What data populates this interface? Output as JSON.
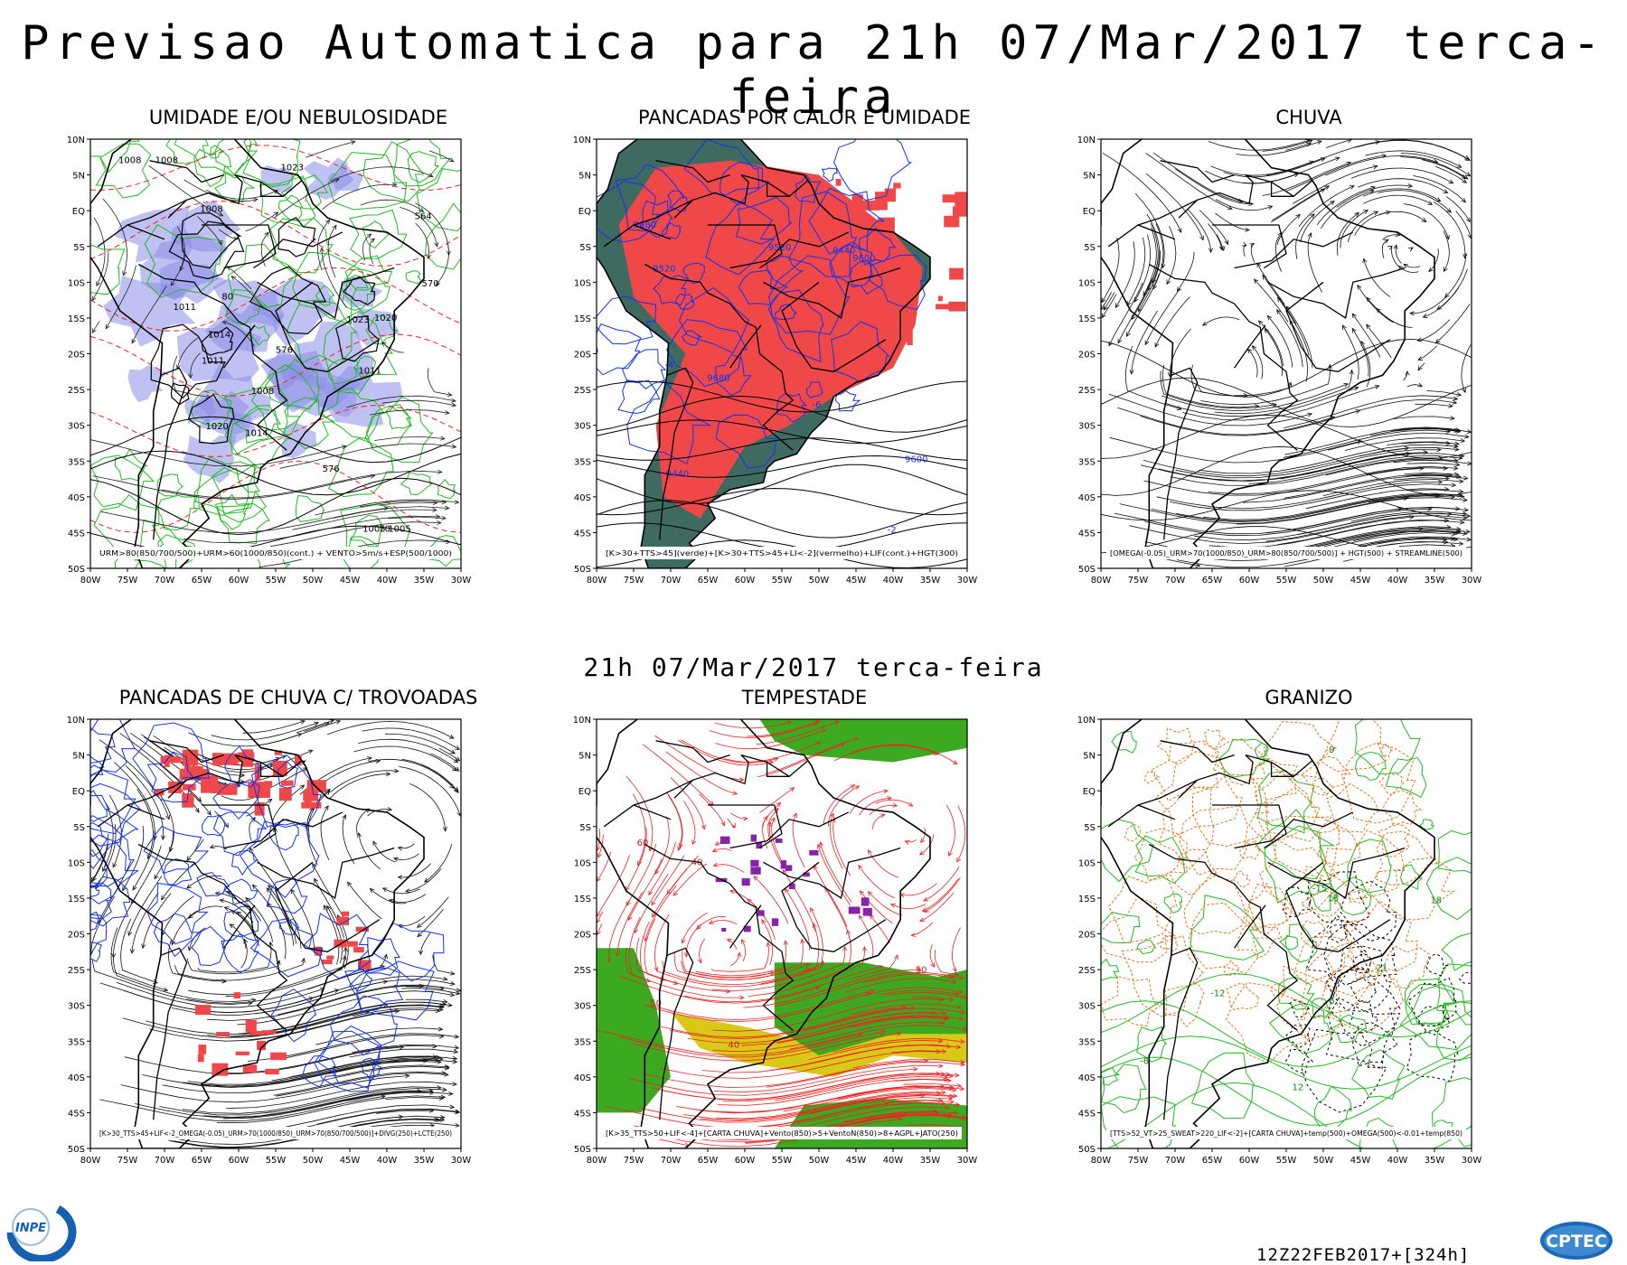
{
  "header": {
    "title": "Previsao Automatica  para 21h 07/Mar/2017 terca-feira",
    "subtitle": "21h 07/Mar/2017 terca-feira"
  },
  "axes": {
    "lat_labels": [
      "10N",
      "5N",
      "EQ",
      "5S",
      "10S",
      "15S",
      "20S",
      "25S",
      "30S",
      "35S",
      "40S",
      "45S",
      "50S"
    ],
    "lon_labels": [
      "80W",
      "75W",
      "70W",
      "65W",
      "60W",
      "55W",
      "50W",
      "45W",
      "40W",
      "35W",
      "30W"
    ]
  },
  "panels": [
    {
      "id": "umidade",
      "title": "UMIDADE E/OU NEBULOSIDADE",
      "caption": "URM>80(850/700/500)+URM>60(1000/850)(cont.) + VENTO>5m/s+ESP(500/1000)",
      "labels": [
        "1008",
        "1011",
        "1008",
        "1011",
        "1005",
        "1008",
        "1014",
        "1011",
        "1020",
        "1023",
        "1020",
        "1023",
        "1008",
        "1005",
        "1014",
        "576",
        "576",
        "570",
        "564",
        "80",
        "70"
      ]
    },
    {
      "id": "pancadas-calor",
      "title": "PANCADAS POR CALOR E UMIDADE",
      "caption": "[K>30+TTS>45](verde)+[K>30+TTS>45+LI<-2](vermelho)+LIF(cont.)+HGT(300)",
      "labels": [
        "-2",
        "-4",
        "-6",
        "9680",
        "9600",
        "9520",
        "9440",
        "9680",
        "9600",
        "9520",
        "9440"
      ]
    },
    {
      "id": "chuva",
      "title": "CHUVA",
      "caption": "[OMEGA(-0.05)_URM>70(1000/850)_URM>80(850/700/500)] + HGT(500) + STREAMLINE(500)",
      "labels": []
    },
    {
      "id": "pancadas-trovoadas",
      "title": "PANCADAS DE CHUVA C/ TROVOADAS",
      "caption": "[K>30_TTS>45+LIF<-2_OMEGA(-0.05)_URM>70(1000/850)_URM>70(850/700/500)]+DIVG(250)+LCTE(250)",
      "labels": []
    },
    {
      "id": "tempestade",
      "title": "TEMPESTADE",
      "caption": "[K>35_TTS>50+LIF<-4]+[CARTA CHUVA]+Vento(850)>5+VentoN(850)>8+AGPL+JATO(250)",
      "labels": [
        "40",
        "50",
        "60",
        "40",
        "50"
      ]
    },
    {
      "id": "granizo",
      "title": "GRANIZO",
      "caption": "[TTS>52_VT>25_SWEAT>220_LIF<-2]+[CARTA CHUVA]+temp(500)+OMEGA(500)<-0.01+temp(850)",
      "labels": [
        "-6",
        "-6",
        "12",
        "15",
        "18",
        "21",
        "-9",
        "-12",
        "-15"
      ]
    }
  ],
  "footer": {
    "run_info": "12Z22FEB2017+[324h]",
    "inpe_logo": "INPE",
    "cptec_logo": "CPTEC"
  },
  "colors": {
    "humidity_fill": "#8a8ee8",
    "contour_green": "#22bb22",
    "contour_red": "#ee2222",
    "contour_blue": "#1133ee",
    "thunder_red": "#f04848",
    "teal": "#2a5a50",
    "storm_green": "#3caa20",
    "storm_yellow": "#d8c818",
    "purple": "#8822aa",
    "orange": "#e07820"
  }
}
